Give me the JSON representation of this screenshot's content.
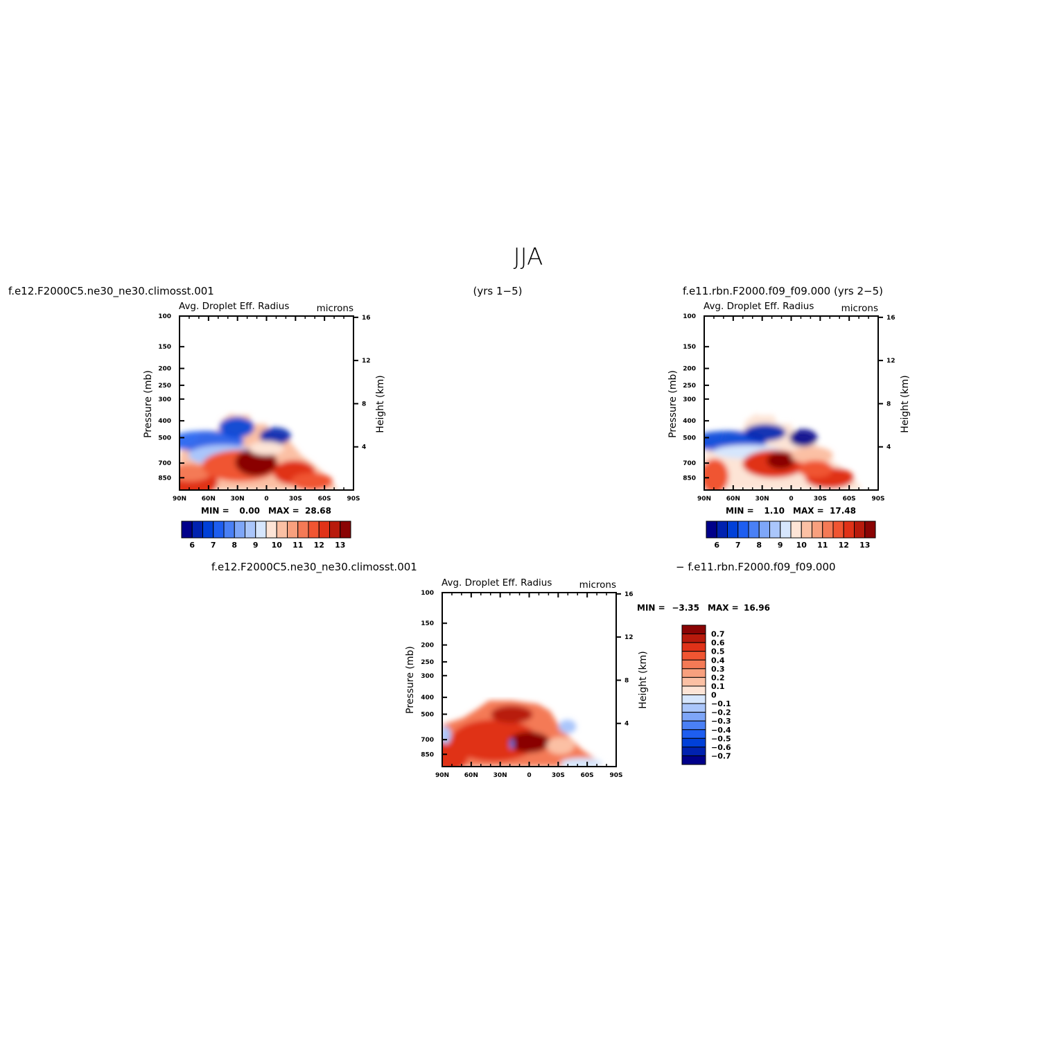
{
  "main_title": "JJA",
  "case_top_left": "f.e12.F2000C5.ne30_ne30.climosst.001",
  "years_center": "(yrs 1−5)",
  "case_top_right": "f.e11.rbn.F2000.f09_f09.000  (yrs 2−5)",
  "case_bottom_left": "f.e12.F2000C5.ne30_ne30.climosst.001",
  "case_bottom_right": "− f.e11.rbn.F2000.f09_f09.000",
  "panels": [
    {
      "id": "p1",
      "title": "Avg. Droplet Eff. Radius",
      "units": "microns",
      "ylabel_left": "Pressure (mb)",
      "ylabel_right": "Height (km)",
      "stats": {
        "min_label": "MIN =",
        "min": "0.00",
        "max_label": "MAX =",
        "max": "28.68"
      }
    },
    {
      "id": "p2",
      "title": "Avg. Droplet Eff. Radius",
      "units": "microns",
      "ylabel_left": "Pressure (mb)",
      "ylabel_right": "Height (km)",
      "stats": {
        "min_label": "MIN =",
        "min": "1.10",
        "max_label": "MAX =",
        "max": "17.48"
      }
    },
    {
      "id": "p3",
      "title": "Avg. Droplet Eff. Radius",
      "units": "microns",
      "ylabel_left": "Pressure (mb)",
      "ylabel_right": "Height (km)",
      "stats": {
        "min_label": "MIN =",
        "min": "−3.35",
        "max_label": "MAX =",
        "max": "16.96"
      }
    }
  ],
  "chart_data": [
    {
      "type": "heatmap",
      "panel": "p1",
      "title": "Avg. Droplet Eff. Radius",
      "units": "microns",
      "xlabel": "",
      "ylabel": "Pressure (mb)",
      "ylabel_right": "Height (km)",
      "x_ticks": [
        "90N",
        "60N",
        "30N",
        "0",
        "30S",
        "60S",
        "90S"
      ],
      "x_range": [
        90,
        -90
      ],
      "y_ticks": [
        "100",
        "150",
        "200",
        "250",
        "300",
        "400",
        "500",
        "700",
        "850"
      ],
      "y_range_mb": [
        1000,
        100
      ],
      "y_log": true,
      "right_ticks": [
        "4",
        "8",
        "12",
        "16"
      ],
      "colorbar_labels": [
        "6",
        "7",
        "8",
        "9",
        "10",
        "11",
        "12",
        "13"
      ],
      "min": 0.0,
      "max": 28.68
    },
    {
      "type": "heatmap",
      "panel": "p2",
      "title": "Avg. Droplet Eff. Radius",
      "units": "microns",
      "xlabel": "",
      "ylabel": "Pressure (mb)",
      "ylabel_right": "Height (km)",
      "x_ticks": [
        "90N",
        "60N",
        "30N",
        "0",
        "30S",
        "60S",
        "90S"
      ],
      "x_range": [
        90,
        -90
      ],
      "y_ticks": [
        "100",
        "150",
        "200",
        "250",
        "300",
        "400",
        "500",
        "700",
        "850"
      ],
      "y_range_mb": [
        1000,
        100
      ],
      "y_log": true,
      "right_ticks": [
        "4",
        "8",
        "12",
        "16"
      ],
      "colorbar_labels": [
        "6",
        "7",
        "8",
        "9",
        "10",
        "11",
        "12",
        "13"
      ],
      "min": 1.1,
      "max": 17.48
    },
    {
      "type": "heatmap",
      "panel": "p3",
      "title": "Avg. Droplet Eff. Radius",
      "units": "microns",
      "xlabel": "",
      "ylabel": "Pressure (mb)",
      "ylabel_right": "Height (km)",
      "x_ticks": [
        "90N",
        "60N",
        "30N",
        "0",
        "30S",
        "60S",
        "90S"
      ],
      "x_range": [
        90,
        -90
      ],
      "y_ticks": [
        "100",
        "150",
        "200",
        "250",
        "300",
        "400",
        "500",
        "700",
        "850"
      ],
      "y_range_mb": [
        1000,
        100
      ],
      "y_log": true,
      "right_ticks": [
        "4",
        "8",
        "12",
        "16"
      ],
      "colorbar_labels": [
        "0.7",
        "0.6",
        "0.5",
        "0.4",
        "0.3",
        "0.2",
        "0.1",
        "0",
        "−0.1",
        "−0.2",
        "−0.3",
        "−0.4",
        "−0.5",
        "−0.6",
        "−0.7"
      ],
      "min": -3.35,
      "max": 16.96
    }
  ],
  "colors": {
    "abs_scale": [
      "#00008a",
      "#0022b0",
      "#0040d8",
      "#1e5ef0",
      "#4a80f5",
      "#7ea6f8",
      "#aac6fb",
      "#d6e6fd",
      "#fde4d6",
      "#fbc0a4",
      "#f8a07e",
      "#f47a56",
      "#f05532",
      "#e03218",
      "#b81a0c",
      "#8a0404"
    ],
    "diff_scale": [
      "#8a0404",
      "#b81a0c",
      "#e03218",
      "#f05532",
      "#f47a56",
      "#f8a07e",
      "#fbc0a4",
      "#fde4d6",
      "#d6e6fd",
      "#aac6fb",
      "#7ea6f8",
      "#4a80f5",
      "#1e5ef0",
      "#0040d8",
      "#0022b0",
      "#00008a"
    ]
  }
}
